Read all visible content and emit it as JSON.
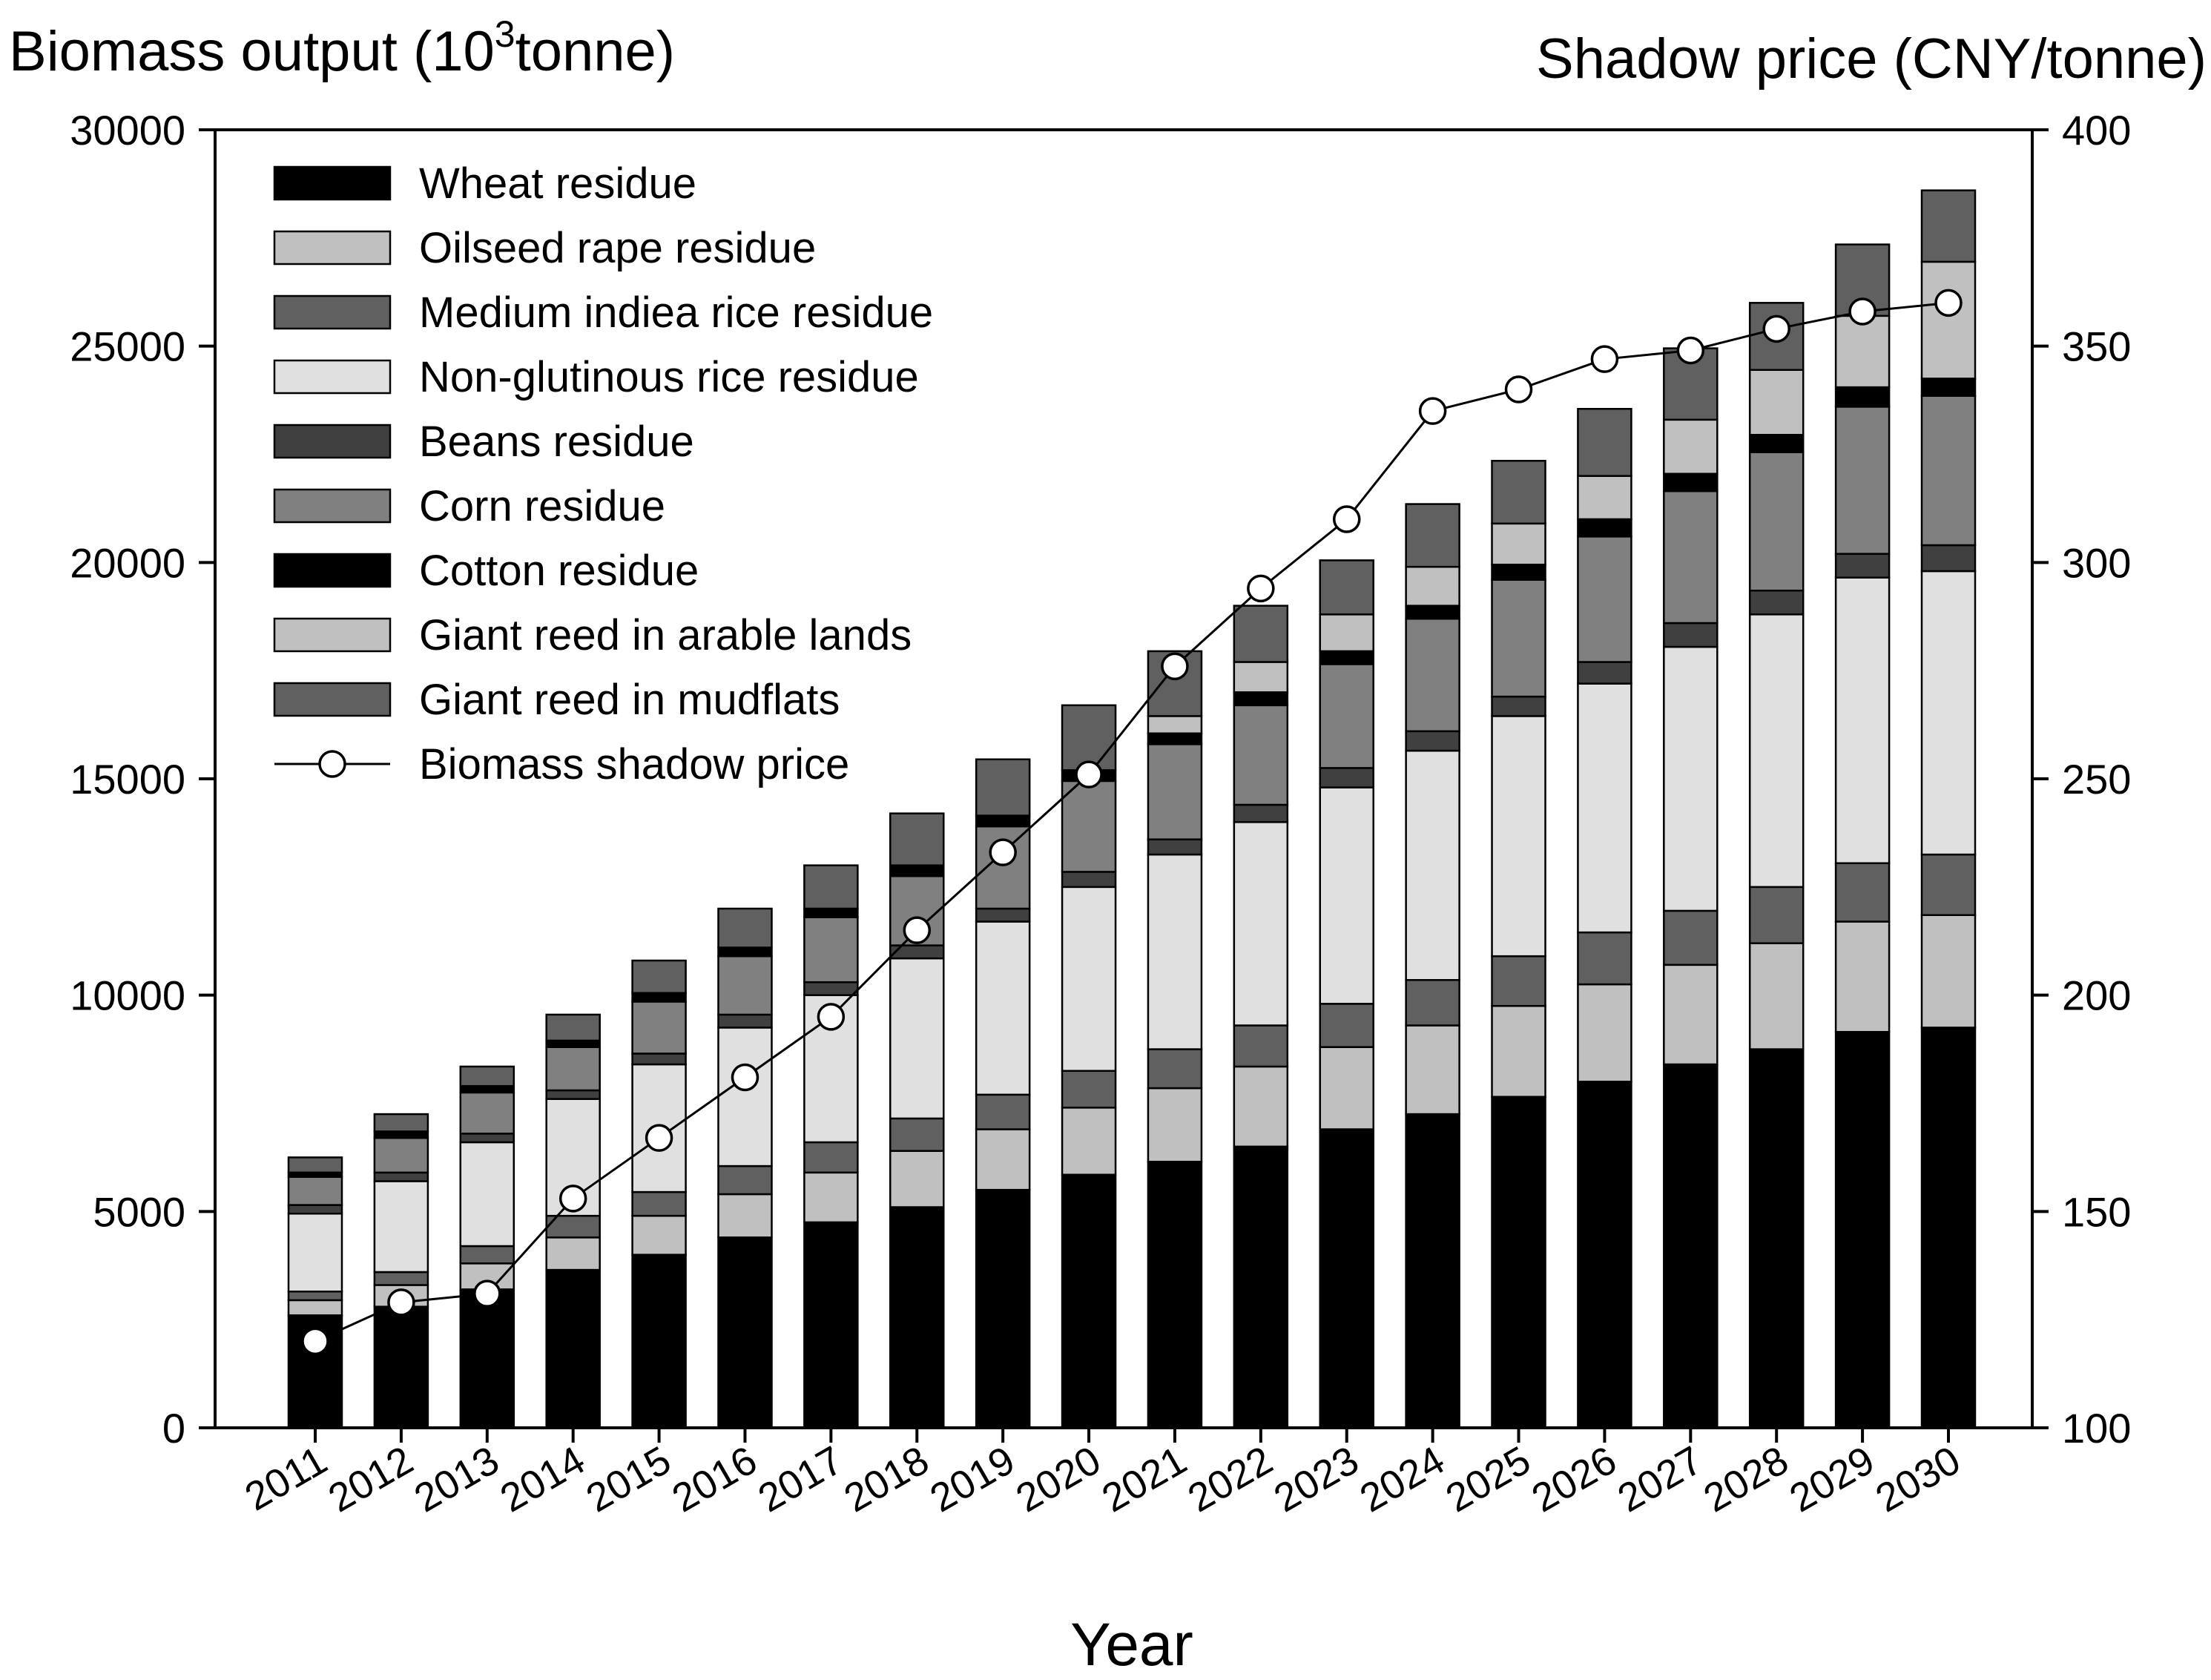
{
  "chart_data": {
    "type": "bar",
    "stacked": true,
    "title_left": "Biomass output (10",
    "title_left_sup": "3",
    "title_left_tail": "tonne)",
    "title_right": "Shadow price (CNY/tonne)",
    "xlabel": "Year",
    "categories": [
      "2011",
      "2012",
      "2013",
      "2014",
      "2015",
      "2016",
      "2017",
      "2018",
      "2019",
      "2020",
      "2021",
      "2022",
      "2023",
      "2024",
      "2025",
      "2026",
      "2027",
      "2028",
      "2029",
      "2030"
    ],
    "ylim": [
      0,
      30000
    ],
    "yticks": [
      "0",
      "5000",
      "10000",
      "15000",
      "20000",
      "25000",
      "30000"
    ],
    "ylim_right": [
      100,
      400
    ],
    "yticks_right": [
      "100",
      "150",
      "200",
      "250",
      "300",
      "350",
      "400"
    ],
    "series": [
      {
        "name": "Wheat residue",
        "color": "#000000",
        "values": [
          2600,
          2800,
          3200,
          3650,
          4000,
          4400,
          4750,
          5100,
          5500,
          5850,
          6150,
          6500,
          6900,
          7250,
          7650,
          8000,
          8400,
          8750,
          9150,
          9250
        ]
      },
      {
        "name": "Oilseed rape residue",
        "color": "#c0c0c0",
        "values": [
          350,
          500,
          600,
          750,
          900,
          1000,
          1150,
          1300,
          1400,
          1550,
          1700,
          1850,
          1900,
          2050,
          2100,
          2250,
          2300,
          2450,
          2550,
          2600
        ]
      },
      {
        "name": "Medium indiea rice residue",
        "color": "#606060",
        "values": [
          200,
          300,
          400,
          500,
          550,
          650,
          700,
          750,
          800,
          850,
          900,
          950,
          1000,
          1050,
          1150,
          1200,
          1250,
          1300,
          1350,
          1400
        ]
      },
      {
        "name": "Non-glutinous rice residue",
        "color": "#e0e0e0",
        "values": [
          1800,
          2100,
          2400,
          2700,
          2950,
          3200,
          3400,
          3700,
          4000,
          4250,
          4500,
          4700,
          5000,
          5300,
          5550,
          5750,
          6100,
          6300,
          6600,
          6550
        ]
      },
      {
        "name": "Beans residue",
        "color": "#404040",
        "values": [
          200,
          200,
          200,
          200,
          250,
          300,
          300,
          300,
          300,
          350,
          350,
          400,
          450,
          450,
          450,
          500,
          550,
          550,
          550,
          600
        ]
      },
      {
        "name": "Corn residue",
        "color": "#808080",
        "values": [
          650,
          800,
          950,
          1000,
          1200,
          1350,
          1500,
          1600,
          1900,
          2100,
          2200,
          2300,
          2400,
          2600,
          2700,
          2900,
          3050,
          3200,
          3400,
          3450
        ]
      },
      {
        "name": "Cotton residue",
        "color": "#000000",
        "values": [
          100,
          150,
          150,
          150,
          200,
          200,
          200,
          250,
          250,
          250,
          250,
          300,
          300,
          300,
          350,
          400,
          400,
          400,
          450,
          400
        ]
      },
      {
        "name": "Giant reed in arable lands",
        "color": "#c0c0c0",
        "values": [
          0,
          0,
          0,
          0,
          0,
          0,
          0,
          0,
          0,
          0,
          400,
          700,
          850,
          900,
          950,
          1000,
          1250,
          1500,
          1650,
          2700
        ]
      },
      {
        "name": "Giant reed in mudflats",
        "color": "#606060",
        "values": [
          350,
          400,
          450,
          600,
          750,
          900,
          1000,
          1200,
          1300,
          1500,
          1500,
          1300,
          1250,
          1450,
          1450,
          1550,
          1650,
          1550,
          1650,
          1650
        ]
      }
    ],
    "line": {
      "name": "Biomass shadow price",
      "axis": "right",
      "values": [
        120,
        129,
        131,
        153,
        167,
        181,
        195,
        215,
        233,
        251,
        276,
        294,
        310,
        335,
        340,
        347,
        349,
        354,
        358,
        360
      ]
    },
    "legend_position": "top-left"
  }
}
